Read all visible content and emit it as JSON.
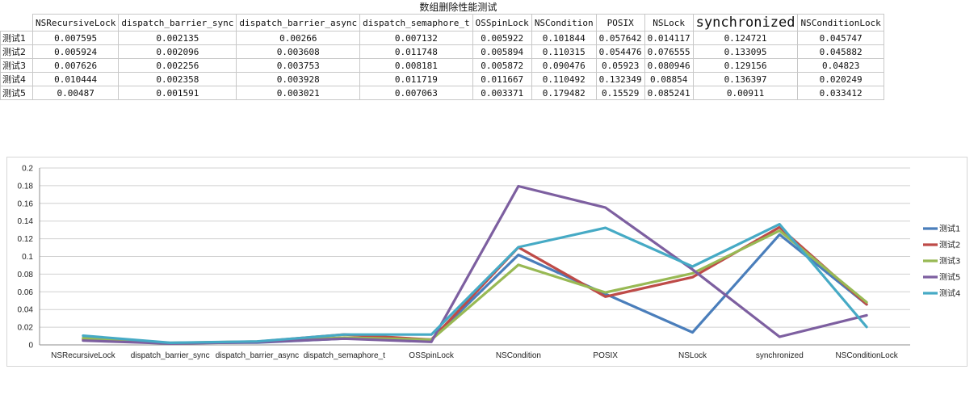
{
  "table": {
    "title": "数组删除性能测试",
    "columns": [
      "NSRecursiveLock",
      "dispatch_barrier_sync",
      "dispatch_barrier_async",
      "dispatch_semaphore_t",
      "OSSpinLock",
      "NSCondition",
      "POSIX",
      "NSLock",
      "synchronized",
      "NSConditionLock"
    ],
    "rows": [
      {
        "label": "测试1",
        "values": [
          "0.007595",
          "0.002135",
          "0.00266",
          "0.007132",
          "0.005922",
          "0.101844",
          "0.057642",
          "0.014117",
          "0.124721",
          "0.045747"
        ]
      },
      {
        "label": "测试2",
        "values": [
          "0.005924",
          "0.002096",
          "0.003608",
          "0.011748",
          "0.005894",
          "0.110315",
          "0.054476",
          "0.076555",
          "0.133095",
          "0.045882"
        ]
      },
      {
        "label": "测试3",
        "values": [
          "0.007626",
          "0.002256",
          "0.003753",
          "0.008181",
          "0.005872",
          "0.090476",
          "0.05923",
          "0.080946",
          "0.129156",
          "0.04823"
        ]
      },
      {
        "label": "测试4",
        "values": [
          "0.010444",
          "0.002358",
          "0.003928",
          "0.011719",
          "0.011667",
          "0.110492",
          "0.132349",
          "0.08854",
          "0.136397",
          "0.020249"
        ]
      },
      {
        "label": "测试5",
        "values": [
          "0.00487",
          "0.001591",
          "0.003021",
          "0.007063",
          "0.003371",
          "0.179482",
          "0.15529",
          "0.085241",
          "0.00911",
          "0.033412"
        ]
      }
    ]
  },
  "chart_data": {
    "type": "line",
    "categories": [
      "NSRecursiveLock",
      "dispatch_barrier_sync",
      "dispatch_barrier_async",
      "dispatch_semaphore_t",
      "OSSpinLock",
      "NSCondition",
      "POSIX",
      "NSLock",
      "synchronized",
      "NSConditionLock"
    ],
    "ylim": [
      0,
      0.2
    ],
    "yticks": [
      "0",
      "0.02",
      "0.04",
      "0.06",
      "0.08",
      "0.1",
      "0.12",
      "0.14",
      "0.16",
      "0.18",
      "0.2"
    ],
    "grid": true,
    "legend_position": "right",
    "series": [
      {
        "name": "测试1",
        "color": "#4a7ebb",
        "values": [
          0.007595,
          0.002135,
          0.00266,
          0.007132,
          0.005922,
          0.101844,
          0.057642,
          0.014117,
          0.124721,
          0.045747
        ]
      },
      {
        "name": "测试2",
        "color": "#be4b48",
        "values": [
          0.005924,
          0.002096,
          0.003608,
          0.011748,
          0.005894,
          0.110315,
          0.054476,
          0.076555,
          0.133095,
          0.045882
        ]
      },
      {
        "name": "测试3",
        "color": "#98b954",
        "values": [
          0.007626,
          0.002256,
          0.003753,
          0.008181,
          0.005872,
          0.090476,
          0.05923,
          0.080946,
          0.129156,
          0.04823
        ]
      },
      {
        "name": "测试5",
        "color": "#7d5fa0",
        "values": [
          0.00487,
          0.001591,
          0.003021,
          0.007063,
          0.003371,
          0.179482,
          0.15529,
          0.085241,
          0.00911,
          0.033412
        ]
      },
      {
        "name": "测试4",
        "color": "#46aac5",
        "values": [
          0.010444,
          0.002358,
          0.003928,
          0.011719,
          0.011667,
          0.110492,
          0.132349,
          0.08854,
          0.136397,
          0.020249
        ]
      }
    ]
  }
}
